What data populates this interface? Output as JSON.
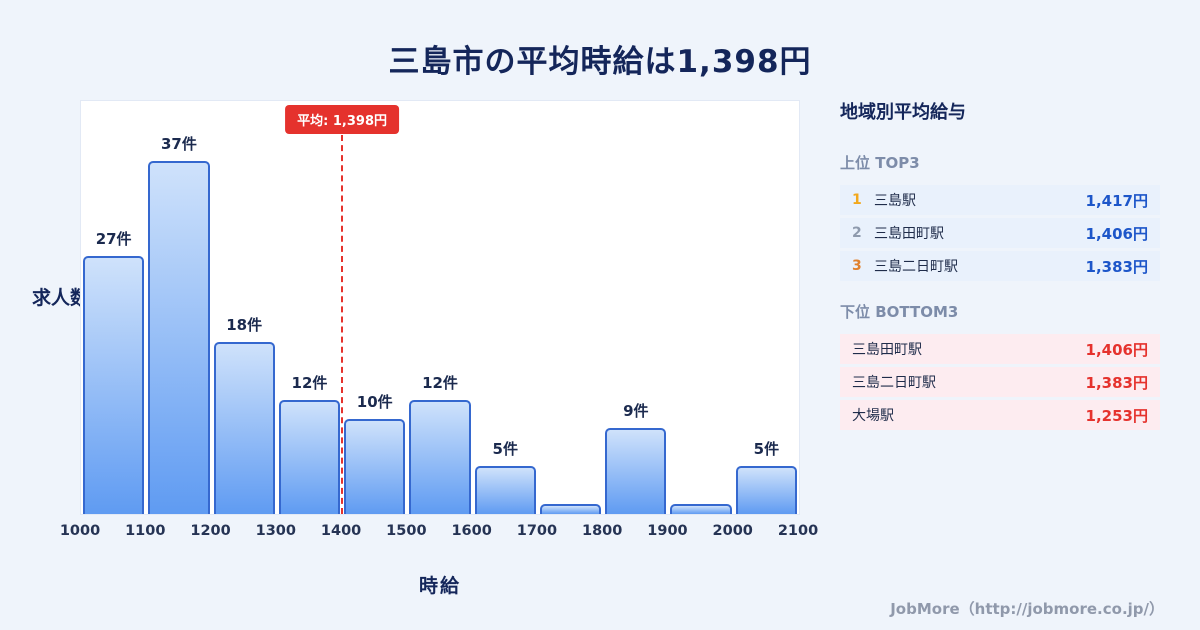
{
  "title": "三島市の平均時給は1,398円",
  "chart_data": {
    "type": "bar",
    "title": "三島市の平均時給は1,398円",
    "xlabel": "時給",
    "ylabel": "求人数",
    "x_ticks": [
      "1000",
      "1100",
      "1200",
      "1300",
      "1400",
      "1500",
      "1600",
      "1700",
      "1800",
      "1900",
      "2000",
      "2100"
    ],
    "bin_edges": [
      1000,
      1100,
      1200,
      1300,
      1400,
      1500,
      1600,
      1700,
      1800,
      1900,
      2000,
      2100
    ],
    "values": [
      27,
      37,
      18,
      12,
      10,
      12,
      5,
      1,
      9,
      1,
      5
    ],
    "bar_labels": [
      "27件",
      "37件",
      "18件",
      "12件",
      "10件",
      "12件",
      "5件",
      "",
      "9件",
      "",
      "5件"
    ],
    "average": 1398,
    "average_label": "平均: 1,398円",
    "average_line_x": 1400,
    "xlim": [
      1000,
      2100
    ],
    "ylim": [
      0,
      40
    ],
    "grid": false,
    "legend": "none",
    "colors": {
      "bar_top": "#cfe2fb",
      "bar_bottom": "#5f9bf2",
      "bar_border": "#3568cf",
      "average": "#e5322d"
    }
  },
  "panel": {
    "title": "地域別平均給与",
    "top3": {
      "heading": "上位 TOP3",
      "value_color": "#1d56c9",
      "rank_colors": [
        "#f2a81d",
        "#8e9aad",
        "#e0812e"
      ],
      "rows": [
        {
          "rank": "1",
          "name": "三島駅",
          "value": "1,417円"
        },
        {
          "rank": "2",
          "name": "三島田町駅",
          "value": "1,406円"
        },
        {
          "rank": "3",
          "name": "三島二日町駅",
          "value": "1,383円"
        }
      ]
    },
    "bottom3": {
      "heading": "下位 BOTTOM3",
      "value_color": "#e5322d",
      "rows": [
        {
          "name": "三島田町駅",
          "value": "1,406円"
        },
        {
          "name": "三島二日町駅",
          "value": "1,383円"
        },
        {
          "name": "大場駅",
          "value": "1,253円"
        }
      ]
    }
  },
  "footer": {
    "credit": "JobMore（http://jobmore.co.jp/）"
  }
}
